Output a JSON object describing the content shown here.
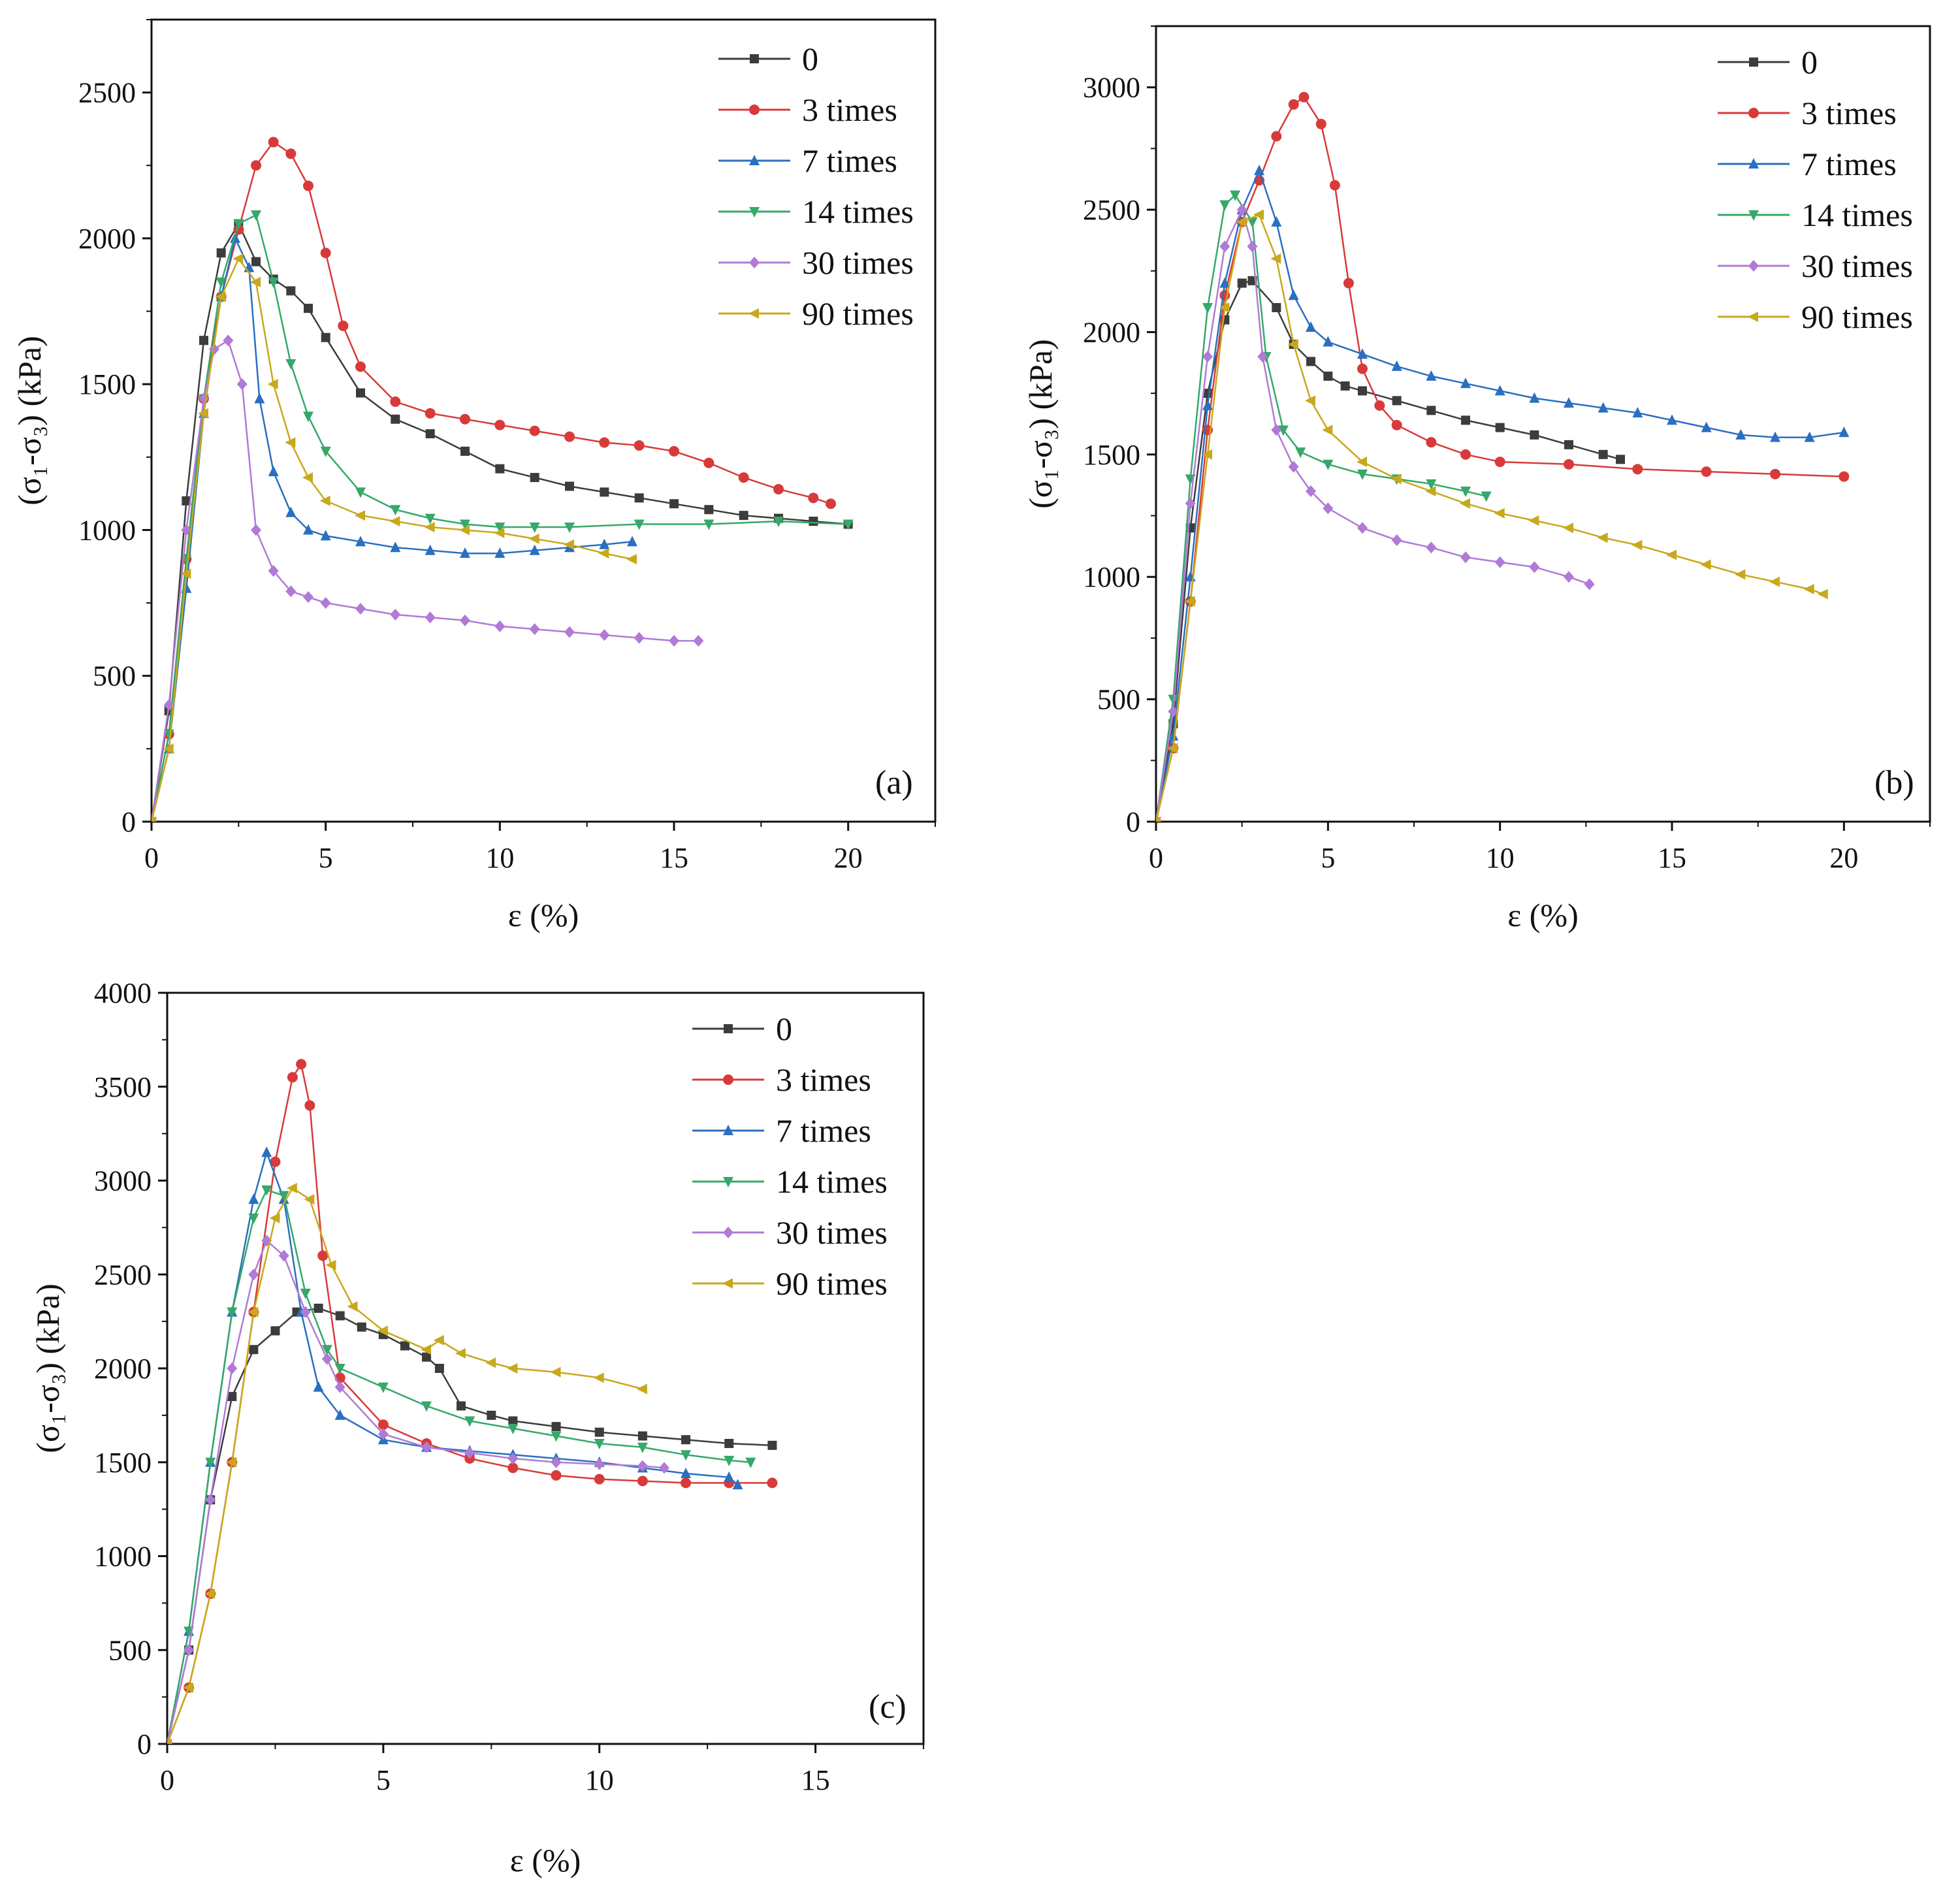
{
  "figure": {
    "legend_entries": [
      "0",
      "3 times",
      "7 times",
      "14 times",
      "30 times",
      "90 times"
    ],
    "series_colors": [
      "#3c3c3c",
      "#d83a3a",
      "#2a6fc0",
      "#35a86a",
      "#b07ad6",
      "#c8a81c"
    ]
  },
  "chart_data": [
    {
      "type": "line",
      "panel_label": "(a)",
      "xlabel": "ε (%)",
      "ylabel": "(σ₁-σ₃) (kPa)",
      "xlim": [
        0,
        22.5
      ],
      "ylim": [
        0,
        2750
      ],
      "xticks": [
        0,
        5,
        10,
        15,
        20
      ],
      "yticks": [
        0,
        500,
        1000,
        1500,
        2000,
        2500
      ],
      "legend": {
        "position": "top-right",
        "entries": [
          "0",
          "3 times",
          "7 times",
          "14 times",
          "30 times",
          "90 times"
        ]
      },
      "series": [
        {
          "name": "0",
          "color": "#3c3c3c",
          "marker": "square",
          "x": [
            0,
            0.5,
            1,
            1.5,
            2,
            2.5,
            3,
            3.5,
            4,
            4.5,
            5,
            6,
            7,
            8,
            9,
            10,
            11,
            12,
            13,
            14,
            15,
            16,
            17,
            18,
            19,
            20
          ],
          "y": [
            0,
            380,
            1100,
            1650,
            1950,
            2050,
            1920,
            1860,
            1820,
            1760,
            1660,
            1470,
            1380,
            1330,
            1270,
            1210,
            1180,
            1150,
            1130,
            1110,
            1090,
            1070,
            1050,
            1040,
            1030,
            1020
          ]
        },
        {
          "name": "3 times",
          "color": "#d83a3a",
          "marker": "circle",
          "x": [
            0,
            0.5,
            1,
            1.5,
            2,
            2.5,
            3,
            3.5,
            4,
            4.5,
            5,
            5.5,
            6,
            7,
            8,
            9,
            10,
            11,
            12,
            13,
            14,
            15,
            16,
            17,
            18,
            19,
            19.5
          ],
          "y": [
            0,
            300,
            900,
            1450,
            1800,
            2030,
            2250,
            2330,
            2290,
            2180,
            1950,
            1700,
            1560,
            1440,
            1400,
            1380,
            1360,
            1340,
            1320,
            1300,
            1290,
            1270,
            1230,
            1180,
            1140,
            1110,
            1090
          ]
        },
        {
          "name": "7 times",
          "color": "#2a6fc0",
          "marker": "triangle-up",
          "x": [
            0,
            0.5,
            1,
            1.5,
            2,
            2.4,
            2.8,
            3.1,
            3.5,
            4,
            4.5,
            5,
            6,
            7,
            8,
            9,
            10,
            11,
            12,
            13,
            13.8
          ],
          "y": [
            0,
            250,
            800,
            1400,
            1800,
            2000,
            1900,
            1450,
            1200,
            1060,
            1000,
            980,
            960,
            940,
            930,
            920,
            920,
            930,
            940,
            950,
            960
          ]
        },
        {
          "name": "14 times",
          "color": "#35a86a",
          "marker": "triangle-down",
          "x": [
            0,
            0.5,
            1,
            1.5,
            2,
            2.5,
            3,
            3.5,
            4,
            4.5,
            5,
            6,
            7,
            8,
            9,
            10,
            11,
            12,
            14,
            16,
            18,
            20
          ],
          "y": [
            0,
            300,
            900,
            1450,
            1850,
            2050,
            2080,
            1850,
            1570,
            1390,
            1270,
            1130,
            1070,
            1040,
            1020,
            1010,
            1010,
            1010,
            1020,
            1020,
            1030,
            1020
          ]
        },
        {
          "name": "30 times",
          "color": "#b07ad6",
          "marker": "diamond",
          "x": [
            0,
            0.5,
            1,
            1.5,
            1.8,
            2.2,
            2.6,
            3,
            3.5,
            4,
            4.5,
            5,
            6,
            7,
            8,
            9,
            10,
            11,
            12,
            13,
            14,
            15,
            15.7
          ],
          "y": [
            0,
            400,
            1000,
            1450,
            1620,
            1650,
            1500,
            1000,
            860,
            790,
            770,
            750,
            730,
            710,
            700,
            690,
            670,
            660,
            650,
            640,
            630,
            620,
            620
          ]
        },
        {
          "name": "90 times",
          "color": "#c8a81c",
          "marker": "triangle-left",
          "x": [
            0,
            0.5,
            1,
            1.5,
            2,
            2.5,
            3,
            3.5,
            4,
            4.5,
            5,
            6,
            7,
            8,
            9,
            10,
            11,
            12,
            13,
            13.8
          ],
          "y": [
            0,
            250,
            850,
            1400,
            1800,
            1930,
            1850,
            1500,
            1300,
            1180,
            1100,
            1050,
            1030,
            1010,
            1000,
            990,
            970,
            950,
            920,
            900
          ]
        }
      ]
    },
    {
      "type": "line",
      "panel_label": "(b)",
      "xlabel": "ε (%)",
      "ylabel": "(σ₁-σ₃) (kPa)",
      "xlim": [
        0,
        22.5
      ],
      "ylim": [
        0,
        3250
      ],
      "xticks": [
        0,
        5,
        10,
        15,
        20
      ],
      "yticks": [
        0,
        500,
        1000,
        1500,
        2000,
        2500,
        3000
      ],
      "legend": {
        "position": "top-right",
        "entries": [
          "0",
          "3 times",
          "7 times",
          "14 times",
          "30 times",
          "90 times"
        ]
      },
      "series": [
        {
          "name": "0",
          "color": "#3c3c3c",
          "marker": "square",
          "x": [
            0,
            0.5,
            1,
            1.5,
            2,
            2.5,
            2.8,
            3.5,
            4,
            4.5,
            5,
            5.5,
            6,
            7,
            8,
            9,
            10,
            11,
            12,
            13,
            13.5
          ],
          "y": [
            0,
            400,
            1200,
            1750,
            2050,
            2200,
            2210,
            2100,
            1950,
            1880,
            1820,
            1780,
            1760,
            1720,
            1680,
            1640,
            1610,
            1580,
            1540,
            1500,
            1480
          ]
        },
        {
          "name": "3 times",
          "color": "#d83a3a",
          "marker": "circle",
          "x": [
            0,
            0.5,
            1,
            1.5,
            2,
            2.5,
            3,
            3.5,
            4,
            4.3,
            4.8,
            5.2,
            5.6,
            6,
            6.5,
            7,
            8,
            9,
            10,
            12,
            14,
            16,
            18,
            20
          ],
          "y": [
            0,
            300,
            900,
            1600,
            2150,
            2450,
            2620,
            2800,
            2930,
            2960,
            2850,
            2600,
            2200,
            1850,
            1700,
            1620,
            1550,
            1500,
            1470,
            1460,
            1440,
            1430,
            1420,
            1410
          ]
        },
        {
          "name": "7 times",
          "color": "#2a6fc0",
          "marker": "triangle-up",
          "x": [
            0,
            0.5,
            1,
            1.5,
            2,
            2.5,
            3,
            3.5,
            4,
            4.5,
            5,
            6,
            7,
            8,
            9,
            10,
            11,
            12,
            13,
            14,
            15,
            16,
            17,
            18,
            19,
            20
          ],
          "y": [
            0,
            350,
            1000,
            1700,
            2200,
            2500,
            2660,
            2450,
            2150,
            2020,
            1960,
            1910,
            1860,
            1820,
            1790,
            1760,
            1730,
            1710,
            1690,
            1670,
            1640,
            1610,
            1580,
            1570,
            1570,
            1590
          ]
        },
        {
          "name": "14 times",
          "color": "#35a86a",
          "marker": "triangle-down",
          "x": [
            0,
            0.5,
            1,
            1.5,
            2,
            2.3,
            2.8,
            3.2,
            3.7,
            4.2,
            5,
            6,
            7,
            8,
            9,
            9.6
          ],
          "y": [
            0,
            500,
            1400,
            2100,
            2520,
            2560,
            2450,
            1900,
            1600,
            1510,
            1460,
            1420,
            1400,
            1380,
            1350,
            1330
          ]
        },
        {
          "name": "30 times",
          "color": "#b07ad6",
          "marker": "diamond",
          "x": [
            0,
            0.5,
            1,
            1.5,
            2,
            2.5,
            2.8,
            3.1,
            3.5,
            4,
            4.5,
            5,
            6,
            7,
            8,
            9,
            10,
            11,
            12,
            12.6
          ],
          "y": [
            0,
            450,
            1300,
            1900,
            2350,
            2500,
            2350,
            1900,
            1600,
            1450,
            1350,
            1280,
            1200,
            1150,
            1120,
            1080,
            1060,
            1040,
            1000,
            970
          ]
        },
        {
          "name": "90 times",
          "color": "#c8a81c",
          "marker": "triangle-left",
          "x": [
            0,
            0.5,
            1,
            1.5,
            2,
            2.5,
            3,
            3.5,
            4,
            4.5,
            5,
            6,
            7,
            8,
            9,
            10,
            11,
            12,
            13,
            14,
            15,
            16,
            17,
            18,
            19,
            19.4
          ],
          "y": [
            0,
            300,
            900,
            1500,
            2100,
            2450,
            2480,
            2300,
            1950,
            1720,
            1600,
            1470,
            1400,
            1350,
            1300,
            1260,
            1230,
            1200,
            1160,
            1130,
            1090,
            1050,
            1010,
            980,
            950,
            930
          ]
        }
      ]
    },
    {
      "type": "line",
      "panel_label": "(c)",
      "xlabel": "ε (%)",
      "ylabel": "(σ₁-σ₃) (kPa)",
      "xlim": [
        0,
        17.5
      ],
      "ylim": [
        0,
        4000
      ],
      "xticks": [
        0,
        5,
        10,
        15
      ],
      "yticks": [
        0,
        500,
        1000,
        1500,
        2000,
        2500,
        3000,
        3500,
        4000
      ],
      "legend": {
        "position": "top-right",
        "entries": [
          "0",
          "3 times",
          "7 times",
          "14 times",
          "30 times",
          "90 times"
        ]
      },
      "series": [
        {
          "name": "0",
          "color": "#3c3c3c",
          "marker": "square",
          "x": [
            0,
            0.5,
            1,
            1.5,
            2,
            2.5,
            3,
            3.5,
            4,
            4.5,
            5,
            5.5,
            6,
            6.3,
            6.8,
            7.5,
            8,
            9,
            10,
            11,
            12,
            13,
            14
          ],
          "y": [
            0,
            500,
            1300,
            1850,
            2100,
            2200,
            2300,
            2320,
            2280,
            2220,
            2180,
            2120,
            2060,
            2000,
            1800,
            1750,
            1720,
            1690,
            1660,
            1640,
            1620,
            1600,
            1590
          ]
        },
        {
          "name": "3 times",
          "color": "#d83a3a",
          "marker": "circle",
          "x": [
            0,
            0.5,
            1,
            1.5,
            2,
            2.5,
            2.9,
            3.1,
            3.3,
            3.6,
            4,
            5,
            6,
            7,
            8,
            9,
            10,
            11,
            12,
            13,
            14
          ],
          "y": [
            0,
            300,
            800,
            1500,
            2300,
            3100,
            3550,
            3620,
            3400,
            2600,
            1950,
            1700,
            1600,
            1520,
            1470,
            1430,
            1410,
            1400,
            1390,
            1390,
            1390
          ]
        },
        {
          "name": "7 times",
          "color": "#2a6fc0",
          "marker": "triangle-up",
          "x": [
            0,
            0.5,
            1,
            1.5,
            2,
            2.3,
            2.7,
            3.1,
            3.5,
            4,
            5,
            6,
            7,
            8,
            9,
            10,
            11,
            12,
            13,
            13.2
          ],
          "y": [
            0,
            600,
            1500,
            2300,
            2900,
            3150,
            2900,
            2300,
            1900,
            1750,
            1620,
            1580,
            1560,
            1540,
            1520,
            1500,
            1470,
            1440,
            1420,
            1380
          ]
        },
        {
          "name": "14 times",
          "color": "#35a86a",
          "marker": "triangle-down",
          "x": [
            0,
            0.5,
            1,
            1.5,
            2,
            2.3,
            2.7,
            3.2,
            3.7,
            4,
            5,
            6,
            7,
            8,
            9,
            10,
            11,
            12,
            13,
            13.5
          ],
          "y": [
            0,
            600,
            1500,
            2300,
            2800,
            2950,
            2920,
            2400,
            2100,
            2000,
            1900,
            1800,
            1720,
            1680,
            1640,
            1600,
            1580,
            1540,
            1510,
            1500
          ]
        },
        {
          "name": "30 times",
          "color": "#b07ad6",
          "marker": "diamond",
          "x": [
            0,
            0.5,
            1,
            1.5,
            2,
            2.3,
            2.7,
            3.2,
            3.7,
            4,
            5,
            6,
            7,
            8,
            9,
            10,
            11,
            11.5
          ],
          "y": [
            0,
            500,
            1300,
            2000,
            2500,
            2680,
            2600,
            2300,
            2050,
            1900,
            1650,
            1580,
            1550,
            1520,
            1500,
            1490,
            1480,
            1470
          ]
        },
        {
          "name": "90 times",
          "color": "#c8a81c",
          "marker": "triangle-left",
          "x": [
            0,
            0.5,
            1,
            1.5,
            2,
            2.5,
            2.9,
            3.3,
            3.8,
            4.3,
            5,
            6,
            6.3,
            6.8,
            7.5,
            8,
            9,
            10,
            11
          ],
          "y": [
            0,
            300,
            800,
            1500,
            2300,
            2800,
            2960,
            2900,
            2550,
            2330,
            2200,
            2100,
            2150,
            2080,
            2030,
            2000,
            1980,
            1950,
            1890
          ]
        }
      ]
    }
  ]
}
